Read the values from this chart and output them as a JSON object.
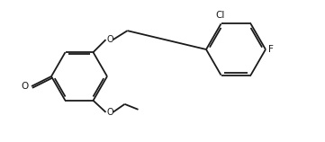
{
  "bg_color": "#ffffff",
  "line_color": "#1a1a1a",
  "line_width": 1.3,
  "font_size": 7.5,
  "label_Cl": "Cl",
  "label_F": "F",
  "label_O_benzyloxy": "O",
  "label_O_ethoxy": "O",
  "label_aldehyde_O": "O"
}
